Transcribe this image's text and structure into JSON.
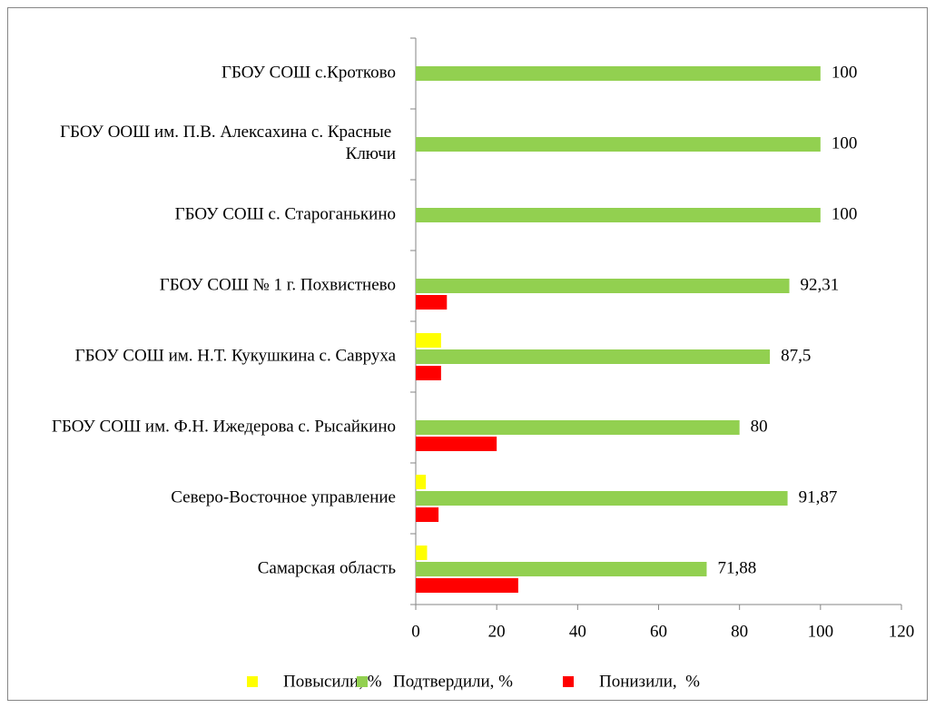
{
  "chart_data": {
    "type": "hbar",
    "categories": [
      "ГБОУ СОШ с.Кротково",
      "ГБОУ ООШ им. П.В. Алексахина с. Красные Ключи",
      "ГБОУ СОШ с. Староганькино",
      "ГБОУ СОШ № 1 г. Похвистнево",
      "ГБОУ СОШ им. Н.Т. Кукушкина с. Савруха",
      "ГБОУ СОШ им. Ф.Н. Ижедерова с. Рысайкино",
      "Северо-Восточное управление",
      "Самарская область"
    ],
    "series": [
      {
        "name": "Повысили, %",
        "color": "#ffff00",
        "values": [
          0,
          0,
          0,
          0,
          6.25,
          0,
          2.5,
          2.8
        ]
      },
      {
        "name": "Подтвердили, %",
        "color": "#92d050",
        "values": [
          100,
          100,
          100,
          92.31,
          87.5,
          80,
          91.87,
          71.88
        ],
        "value_labels": [
          "100",
          "100",
          "100",
          "92,31",
          "87,5",
          "80",
          "91,87",
          "71,88"
        ]
      },
      {
        "name": "Понизили,  %",
        "color": "#ff0000",
        "values": [
          0,
          0,
          0,
          7.69,
          6.25,
          20,
          5.63,
          25.32
        ]
      }
    ],
    "xlim": [
      0,
      120
    ],
    "xticks": [
      0,
      20,
      40,
      60,
      80,
      100,
      120
    ],
    "legend": "bottom"
  }
}
